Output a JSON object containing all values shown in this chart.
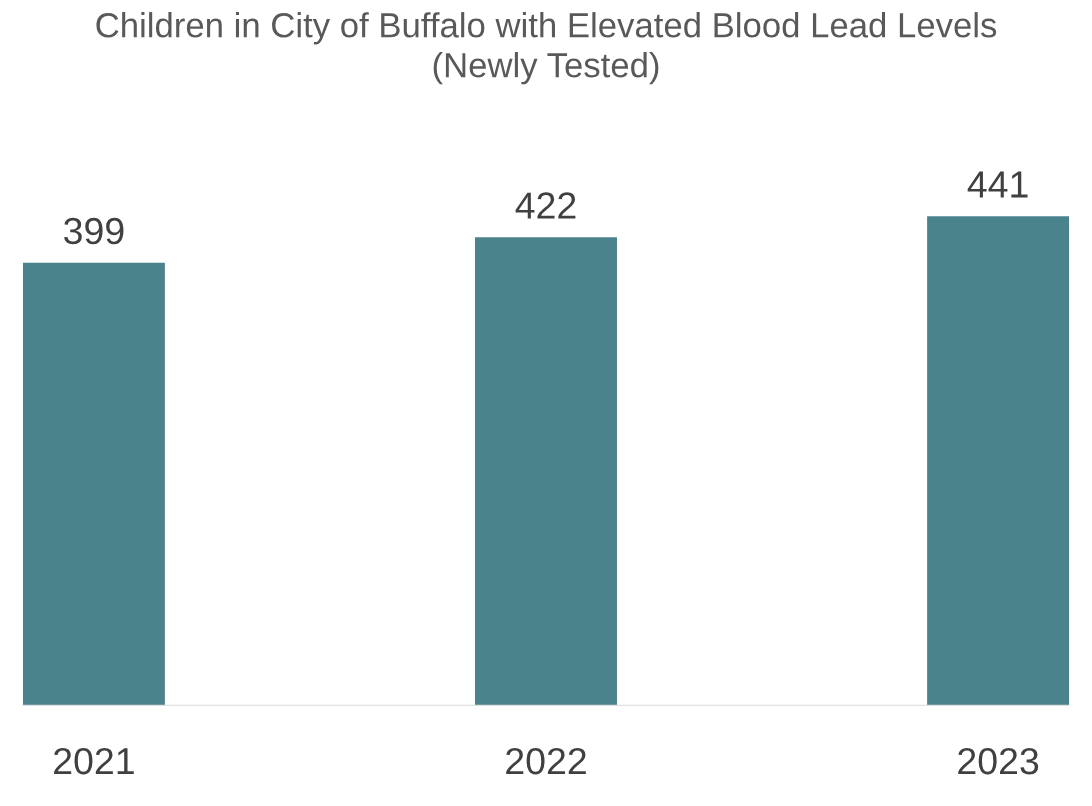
{
  "chart_data": {
    "type": "bar",
    "title": "Children in City of Buffalo with Elevated Blood Lead Levels\n(Newly Tested)",
    "categories": [
      "2021",
      "2022",
      "2023"
    ],
    "values": [
      399,
      422,
      441
    ],
    "color": "#4a838c",
    "data_labels": true,
    "grid": false,
    "legend": false
  }
}
